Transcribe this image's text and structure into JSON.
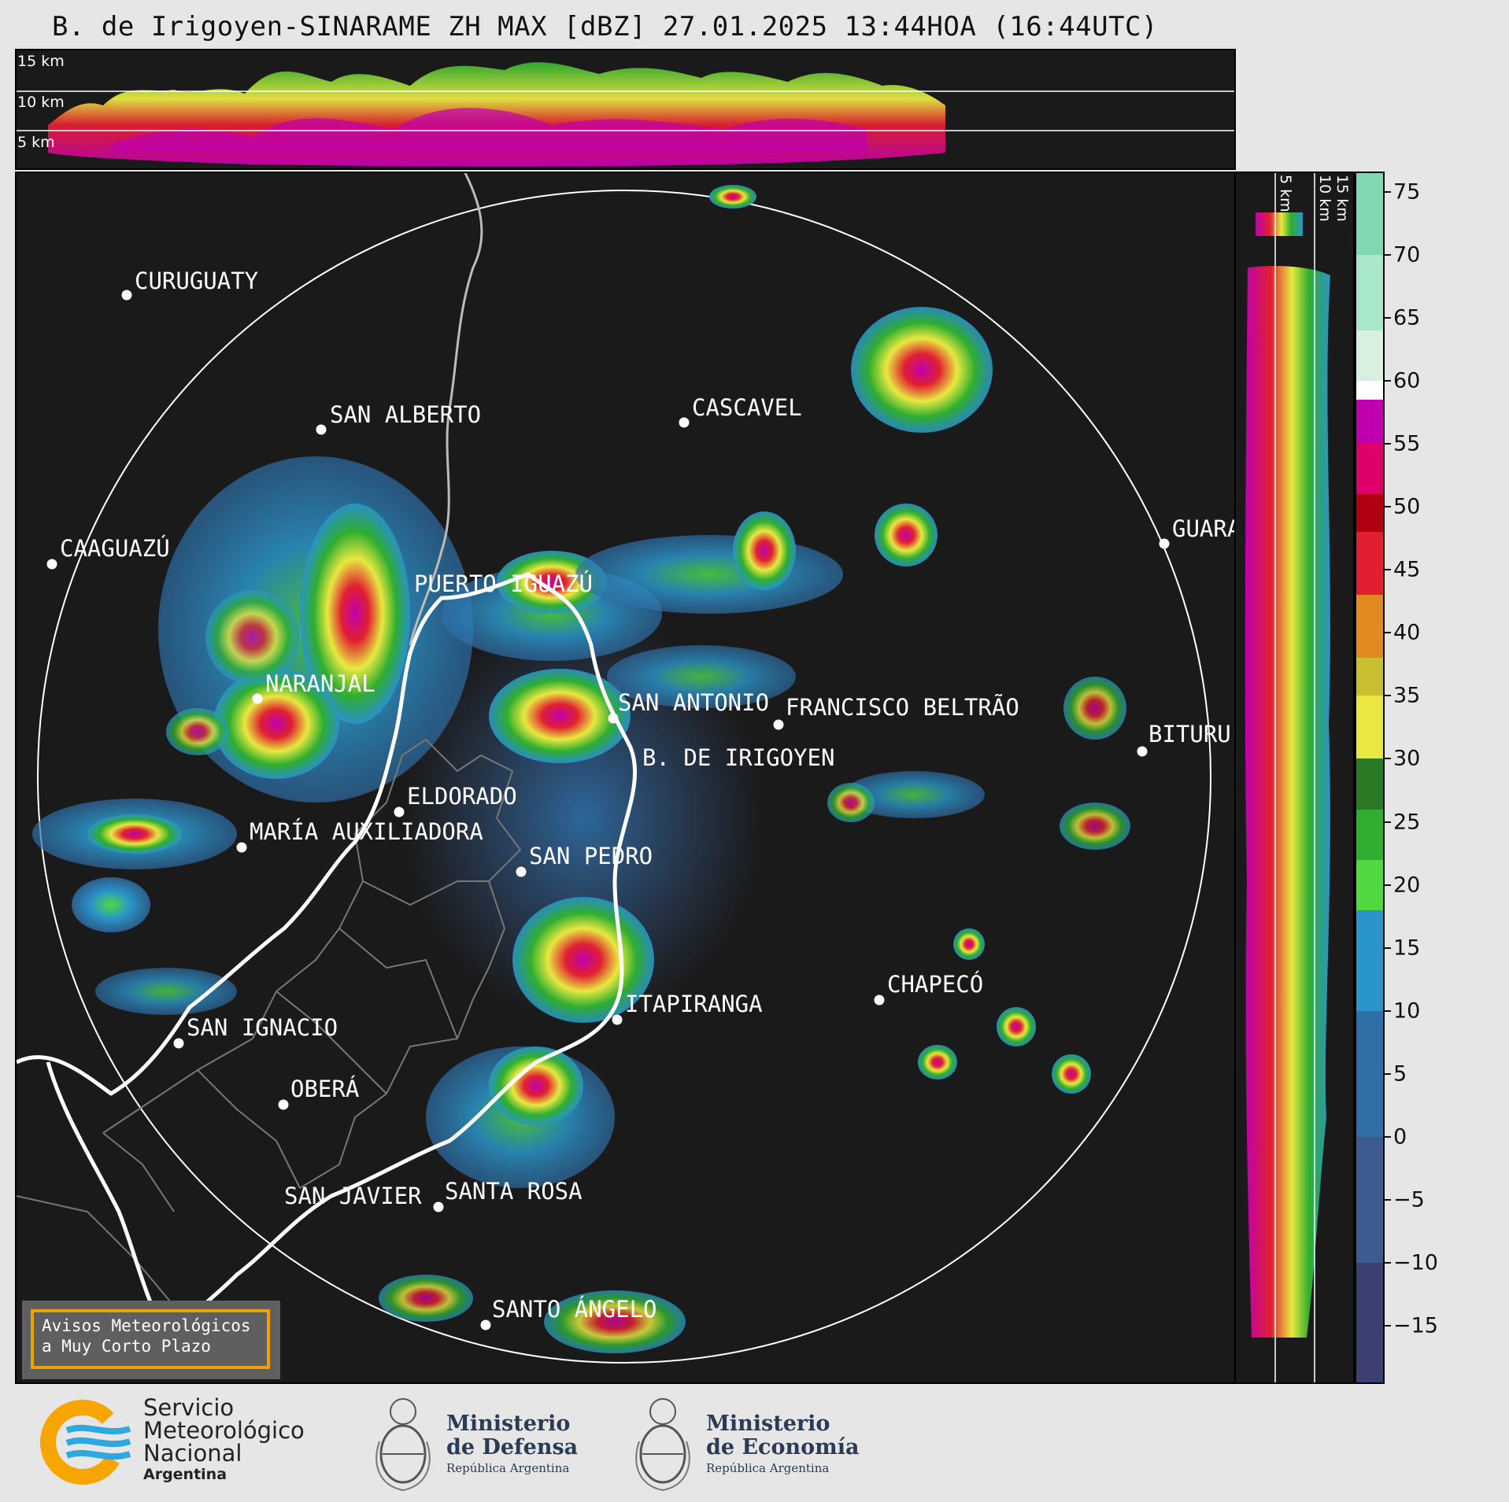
{
  "title": "B. de Irigoyen-SINARAME ZH MAX [dBZ] 27.01.2025 13:44HOA (16:44UTC)",
  "top_panel": {
    "km_labels": [
      "15 km",
      "10 km",
      "5 km"
    ]
  },
  "right_panel": {
    "km_labels": [
      "5 km",
      "10 km",
      "15 km"
    ]
  },
  "colorbar": {
    "unit": "dBZ",
    "ticks": [
      "75",
      "70",
      "65",
      "60",
      "55",
      "50",
      "45",
      "40",
      "35",
      "30",
      "25",
      "20",
      "15",
      "10",
      "5",
      "0",
      "−5",
      "−10",
      "−15"
    ],
    "tick_values": [
      75,
      70,
      65,
      60,
      55,
      50,
      45,
      40,
      35,
      30,
      25,
      20,
      15,
      10,
      5,
      0,
      -5,
      -10,
      -15
    ],
    "range": [
      -19.5,
      76.5
    ],
    "bands": [
      {
        "from": -19.5,
        "to": -10,
        "color": "#3b4070"
      },
      {
        "from": -10,
        "to": 0,
        "color": "#3d5b8f"
      },
      {
        "from": 0,
        "to": 10,
        "color": "#2f6fa8"
      },
      {
        "from": 10,
        "to": 18,
        "color": "#2a95c8"
      },
      {
        "from": 18,
        "to": 22,
        "color": "#4fd840"
      },
      {
        "from": 22,
        "to": 26,
        "color": "#2fae2f"
      },
      {
        "from": 26,
        "to": 30,
        "color": "#2a7a25"
      },
      {
        "from": 30,
        "to": 35,
        "color": "#e8e840"
      },
      {
        "from": 35,
        "to": 38,
        "color": "#c8c030"
      },
      {
        "from": 38,
        "to": 43,
        "color": "#e08a20"
      },
      {
        "from": 43,
        "to": 48,
        "color": "#e02030"
      },
      {
        "from": 48,
        "to": 51,
        "color": "#b00010"
      },
      {
        "from": 51,
        "to": 55,
        "color": "#e0006a"
      },
      {
        "from": 55,
        "to": 58.5,
        "color": "#c000b0"
      },
      {
        "from": 58.5,
        "to": 60,
        "color": "#ffffff"
      },
      {
        "from": 60,
        "to": 64,
        "color": "#d8f0e0"
      },
      {
        "from": 64,
        "to": 70,
        "color": "#a8e8c8"
      },
      {
        "from": 70,
        "to": 76.5,
        "color": "#80d8b0"
      }
    ]
  },
  "cities": [
    {
      "name": "CURUGUATY"
    },
    {
      "name": "SAN ALBERTO"
    },
    {
      "name": "CASCAVEL"
    },
    {
      "name": "CAAGUAZÚ"
    },
    {
      "name": "GUARA"
    },
    {
      "name": "PUERTO IGUAZÚ"
    },
    {
      "name": "NARANJAL"
    },
    {
      "name": "SAN ANTONIO"
    },
    {
      "name": "FRANCISCO BELTRÃO"
    },
    {
      "name": "BITURU"
    },
    {
      "name": "B. DE IRIGOYEN"
    },
    {
      "name": "ELDORADO"
    },
    {
      "name": "MARÍA AUXILIADORA"
    },
    {
      "name": "SAN PEDRO"
    },
    {
      "name": "ITAPIRANGA"
    },
    {
      "name": "CHAPECÓ"
    },
    {
      "name": "SAN IGNACIO"
    },
    {
      "name": "OBERÁ"
    },
    {
      "name": "SAN JAVIER"
    },
    {
      "name": "SANTA ROSA"
    },
    {
      "name": "SANTO ÁNGELO"
    }
  ],
  "aviso": {
    "line1": "Avisos Meteorológicos",
    "line2": "a Muy Corto Plazo"
  },
  "logos": {
    "smn": {
      "line1": "Servicio",
      "line2": "Meteorológico",
      "line3": "Nacional",
      "line4": "Argentina",
      "colors": [
        "#f7a600",
        "#2fa8e0"
      ]
    },
    "defensa": {
      "line1": "Ministerio",
      "line2": "de Defensa",
      "line3": "República Argentina"
    },
    "economia": {
      "line1": "Ministerio",
      "line2": "de Economía",
      "line3": "República Argentina"
    }
  }
}
